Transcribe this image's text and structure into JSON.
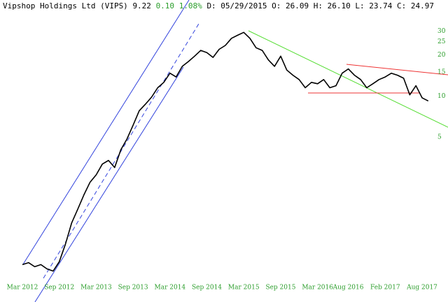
{
  "chart_data": {
    "type": "line",
    "title": "Vipshop Holdings Ltd (VIPS)",
    "quote": {
      "last": "9.22",
      "change": "0.10",
      "change_pct": "1.08%",
      "details": "D: 05/29/2015 O: 26.09 H: 26.10 L: 23.74 C: 24.97"
    },
    "categories": [
      "Mar 2012",
      null,
      null,
      null,
      null,
      null,
      "Sep 2012",
      null,
      null,
      null,
      null,
      null,
      "Mar 2013",
      null,
      null,
      null,
      null,
      null,
      "Sep 2013",
      null,
      null,
      null,
      null,
      null,
      "Mar 2014",
      null,
      null,
      null,
      null,
      null,
      "Sep 2014",
      null,
      null,
      null,
      null,
      null,
      "Mar 2015",
      null,
      null,
      null,
      null,
      null,
      "Sep 2015",
      null,
      null,
      null,
      null,
      null,
      "Mar 2016",
      null,
      null,
      null,
      null,
      "Aug 2016",
      null,
      null,
      null,
      null,
      null,
      "Feb 2017",
      null,
      null,
      null,
      null,
      null,
      "Aug 2017",
      null
    ],
    "series": [
      {
        "name": "VIPS",
        "color": "#000000",
        "values": [
          0.58,
          0.6,
          0.56,
          0.58,
          0.54,
          0.52,
          0.61,
          0.82,
          1.17,
          1.48,
          1.88,
          2.33,
          2.64,
          3.17,
          3.37,
          2.99,
          4.03,
          4.83,
          6.1,
          7.8,
          8.7,
          9.8,
          11.5,
          12.6,
          14.7,
          13.8,
          16.5,
          17.9,
          19.6,
          21.6,
          20.8,
          19.2,
          22.0,
          23.5,
          26.5,
          27.9,
          29.3,
          26.5,
          22.6,
          21.6,
          18.4,
          16.5,
          19.6,
          15.5,
          14.2,
          13.2,
          11.5,
          12.6,
          12.3,
          13.2,
          11.5,
          11.9,
          14.7,
          15.8,
          14.2,
          13.2,
          11.5,
          12.3,
          13.2,
          13.8,
          14.7,
          14.2,
          13.5,
          10.2,
          11.9,
          9.7,
          9.2
        ]
      }
    ],
    "log_scale": true,
    "ylim": [
      0.4,
      50
    ],
    "yticks": [
      5,
      10,
      15,
      20,
      25,
      30
    ],
    "axis_color": "#2a9d2a",
    "grid": false
  }
}
